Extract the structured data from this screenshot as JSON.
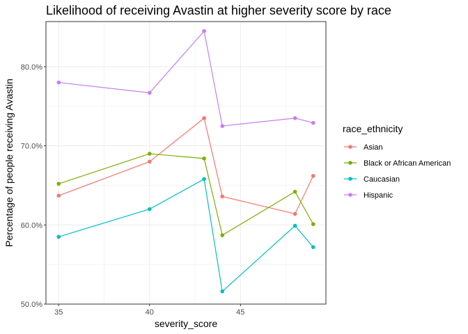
{
  "chart_data": {
    "type": "line",
    "title": "Likelihood of receiving Avastin at higher severity score by race",
    "xlabel": "severity_score",
    "ylabel": "Percentage of people receiving Avastin",
    "xlim": [
      34.3,
      49.7
    ],
    "ylim": [
      50.0,
      85.7
    ],
    "x_ticks": [
      35,
      40,
      45
    ],
    "x_tick_labels": [
      "35",
      "40",
      "45"
    ],
    "y_ticks": [
      50,
      60,
      70,
      80
    ],
    "y_tick_labels": [
      "50.0%",
      "60.0%",
      "70.0%",
      "80.0%"
    ],
    "grid": true,
    "legend": {
      "title": "race_ethnicity",
      "position": "right"
    },
    "x": [
      35,
      40,
      43,
      44,
      48,
      49
    ],
    "series": [
      {
        "name": "Asian",
        "color": "#f8766d",
        "values": [
          63.7,
          68.0,
          73.5,
          63.6,
          61.4,
          66.2
        ]
      },
      {
        "name": "Black or African American",
        "color": "#7cae00",
        "values": [
          65.2,
          69.0,
          68.4,
          58.7,
          64.2,
          60.1
        ]
      },
      {
        "name": "Caucasian",
        "color": "#00bfc4",
        "values": [
          58.5,
          62.0,
          65.8,
          51.6,
          59.9,
          57.2
        ]
      },
      {
        "name": "Hispanic",
        "color": "#c77cff",
        "values": [
          78.0,
          76.7,
          84.5,
          72.5,
          73.5,
          72.9
        ]
      }
    ]
  }
}
